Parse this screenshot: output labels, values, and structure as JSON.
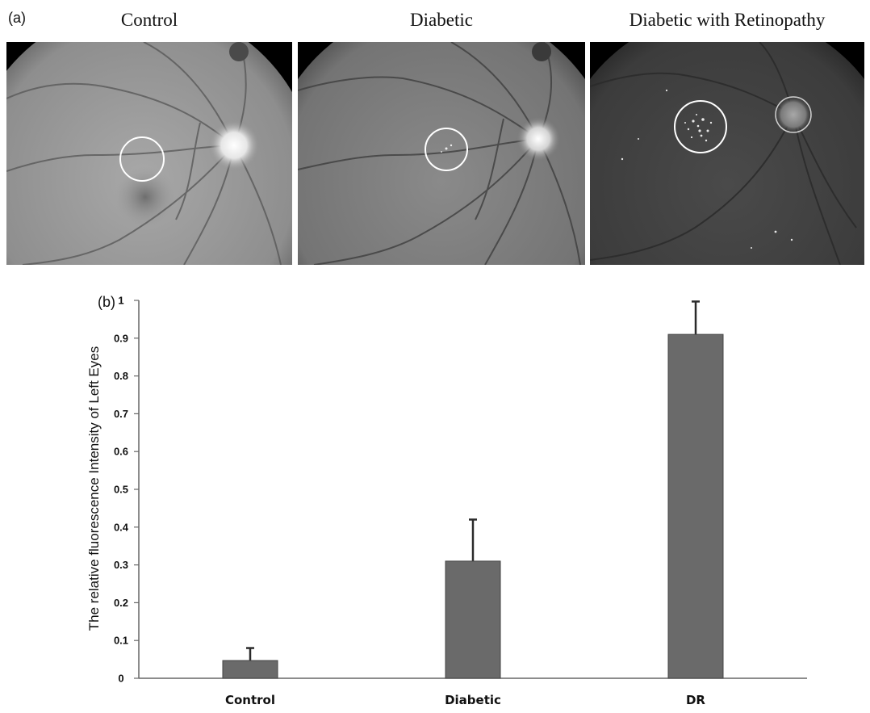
{
  "panel_a": {
    "label": "(a)",
    "images": [
      {
        "title": "Control"
      },
      {
        "title": "Diabetic"
      },
      {
        "title": "Diabetic with Retinopathy"
      }
    ]
  },
  "panel_b": {
    "label": "(b)"
  },
  "colors": {
    "bar": "#6a6a6a",
    "bar_edge": "#444444",
    "error_bar": "#2a2a2a",
    "axis": "#666666",
    "text": "#111111"
  },
  "chart_data": {
    "type": "bar",
    "title": "",
    "xlabel": "",
    "ylabel": "The relative fluorescence Intensity of Left Eyes",
    "categories": [
      "Control",
      "Diabetic",
      "DR"
    ],
    "values": [
      0.047,
      0.31,
      0.91
    ],
    "errors": [
      0.033,
      0.11,
      0.087
    ],
    "ylim": [
      0,
      1
    ],
    "yticks": [
      "0",
      "0.1",
      "0.2",
      "0.3",
      "0.4",
      "0.5",
      "0.6",
      "0.7",
      "0.8",
      "0.9",
      "1"
    ],
    "grid": false,
    "legend": "none"
  }
}
